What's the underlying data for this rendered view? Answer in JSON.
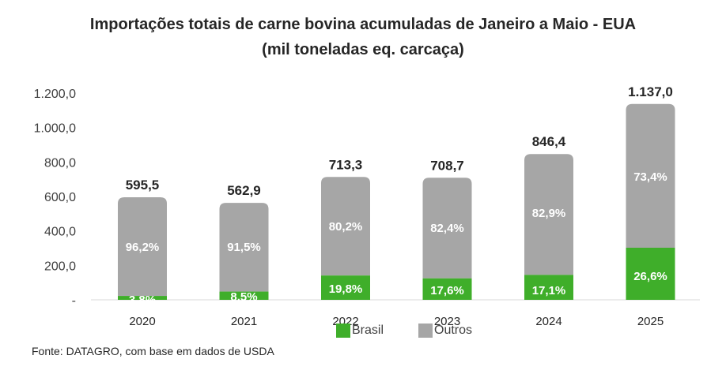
{
  "chart_data": {
    "type": "bar",
    "stacked": true,
    "title": "Importações totais de carne bovina acumuladas de Janeiro a Maio - EUA",
    "subtitle": "(mil toneladas eq. carcaça)",
    "categories": [
      "2020",
      "2021",
      "2022",
      "2023",
      "2024",
      "2025"
    ],
    "totals": [
      595.5,
      562.9,
      713.3,
      708.7,
      846.4,
      1137.0
    ],
    "total_labels": [
      "595,5",
      "562,9",
      "713,3",
      "708,7",
      "846,4",
      "1.137,0"
    ],
    "series": [
      {
        "name": "Brasil",
        "color": "#3fae2a",
        "share": [
          3.8,
          8.5,
          19.8,
          17.6,
          17.1,
          26.6
        ],
        "labels": [
          "3,8%",
          "8,5%",
          "19,8%",
          "17,6%",
          "17,1%",
          "26,6%"
        ]
      },
      {
        "name": "Outros",
        "color": "#a6a6a6",
        "share": [
          96.2,
          91.5,
          80.2,
          82.4,
          82.9,
          73.4
        ],
        "labels": [
          "96,2%",
          "91,5%",
          "80,2%",
          "82,4%",
          "82,9%",
          "73,4%"
        ]
      }
    ],
    "ylim": [
      0,
      1200
    ],
    "yticks": [
      0,
      200,
      400,
      600,
      800,
      1000,
      1200
    ],
    "ytick_labels": [
      "-",
      "200,0",
      "400,0",
      "600,0",
      "800,0",
      "1.000,0",
      "1.200,0"
    ],
    "grid": false,
    "legend_position": "bottom"
  },
  "source": "Fonte: DATAGRO, com base em dados de USDA"
}
